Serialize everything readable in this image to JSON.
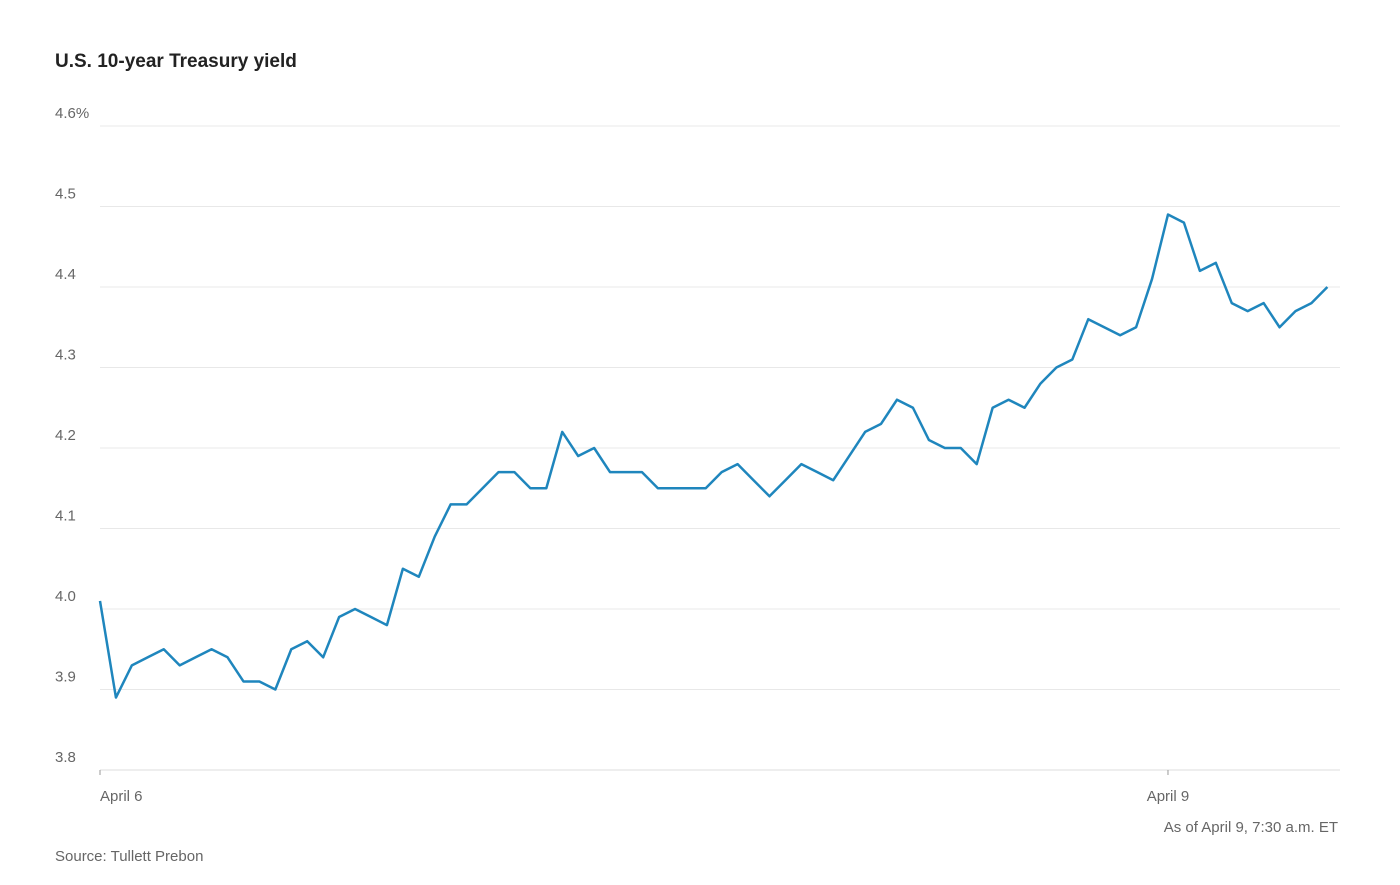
{
  "chart_data": {
    "type": "line",
    "title": "U.S. 10-year Treasury yield",
    "note": "As of April 9, 7:30 a.m. ET",
    "source": "Source: Tullett Prebon",
    "categories": [
      "April 6",
      null,
      null,
      null,
      null,
      null,
      null,
      null,
      null,
      null,
      null,
      null,
      null,
      null,
      null,
      null,
      null,
      null,
      null,
      null,
      null,
      null,
      null,
      null,
      null,
      null,
      null,
      null,
      null,
      null,
      null,
      null,
      null,
      null,
      null,
      null,
      null,
      null,
      null,
      null,
      null,
      null,
      null,
      null,
      null,
      null,
      null,
      null,
      null,
      null,
      null,
      null,
      null,
      null,
      null,
      null,
      null,
      null,
      null,
      null,
      null,
      null,
      null,
      null,
      null,
      null,
      null,
      "April 9",
      null,
      null,
      null,
      null,
      null,
      null,
      null,
      null,
      null,
      null
    ],
    "series": [
      {
        "name": "10-year yield",
        "color": "#1f86bd",
        "values": [
          4.01,
          3.89,
          3.93,
          3.94,
          3.95,
          3.93,
          3.94,
          3.95,
          3.94,
          3.91,
          3.91,
          3.9,
          3.95,
          3.96,
          3.94,
          3.99,
          4.0,
          3.99,
          3.98,
          4.05,
          4.04,
          4.09,
          4.13,
          4.13,
          4.15,
          4.17,
          4.17,
          4.15,
          4.15,
          4.22,
          4.19,
          4.2,
          4.17,
          4.17,
          4.17,
          4.15,
          4.15,
          4.15,
          4.15,
          4.17,
          4.18,
          4.16,
          4.14,
          4.16,
          4.18,
          4.17,
          4.16,
          4.19,
          4.22,
          4.23,
          4.26,
          4.25,
          4.21,
          4.2,
          4.2,
          4.18,
          4.25,
          4.26,
          4.25,
          4.28,
          4.3,
          4.31,
          4.36,
          4.35,
          4.34,
          4.35,
          4.41,
          4.49,
          4.48,
          4.42,
          4.43,
          4.38,
          4.37,
          4.38,
          4.35,
          4.37,
          4.38,
          4.4
        ]
      }
    ],
    "ylim": [
      3.8,
      4.6
    ],
    "yticks": [
      3.8,
      3.9,
      {
        "value": 4.0,
        "label": "4.0"
      },
      4.1,
      4.2,
      4.3,
      4.4,
      4.5,
      {
        "value": 4.6,
        "label": "4.6%"
      }
    ],
    "grid": true
  }
}
